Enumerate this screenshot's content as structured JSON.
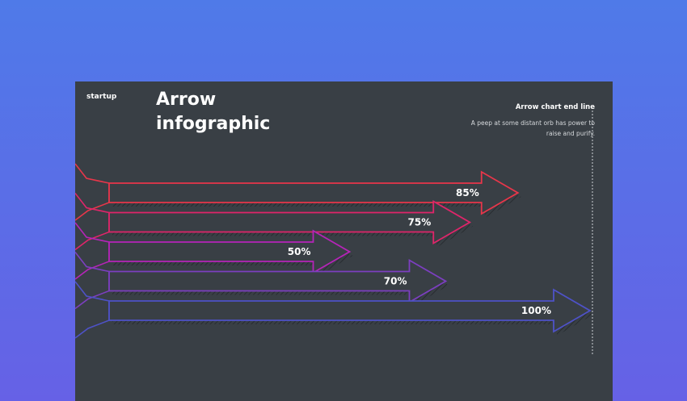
{
  "slide": {
    "brand": "startup",
    "title_line1": "Arrow",
    "title_line2": "infographic",
    "end_line_title": "Arrow chart end line",
    "end_line_desc": "A peep at some distant orb has power to raise and purify."
  },
  "chart_data": {
    "type": "bar",
    "orientation": "horizontal",
    "categories": [
      "",
      "",
      "",
      "",
      ""
    ],
    "values": [
      85,
      75,
      50,
      70,
      100
    ],
    "data_labels": [
      "85%",
      "75%",
      "50%",
      "70%",
      "100%"
    ],
    "colors": [
      "#e8364a",
      "#e0256a",
      "#b624b8",
      "#7c3fc0",
      "#4e52c7"
    ],
    "xlim": [
      0,
      100
    ],
    "grid": false,
    "legend": "none"
  }
}
